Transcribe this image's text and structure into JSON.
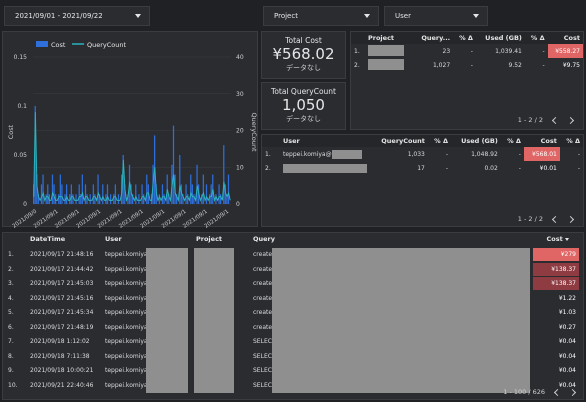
{
  "filters": {
    "date_range": "2021/09/01 - 2021/09/22",
    "project": "Project",
    "user": "User"
  },
  "kpi": {
    "total_cost_label": "Total Cost",
    "total_cost_value": "¥568.02",
    "total_cost_sub": "データなし",
    "total_query_label": "Total QueryCount",
    "total_query_value": "1,050",
    "total_query_sub": "データなし"
  },
  "chart_data": {
    "type": "bar",
    "legend": [
      "Cost",
      "QueryCount"
    ],
    "colors": {
      "cost": "#2f6fdb",
      "querycount": "#2bb3c0"
    },
    "ylabel_left": "Cost",
    "ylabel_right": "QueryCount",
    "ylim_left": [
      0,
      0.15
    ],
    "ylim_right": [
      0,
      40
    ],
    "yticks_left": [
      "0.15",
      "0.1",
      "0.05",
      "0"
    ],
    "yticks_right": [
      "40",
      "30",
      "20",
      "10",
      "0"
    ],
    "xticks": [
      "2021/09/0",
      "2021/09/1",
      "2021/09/1",
      "2021/09/1",
      "2021/09/1",
      "2021/09/1",
      "2021/09/1",
      "2021/09/1",
      "2021/09/1",
      "2021/09/1"
    ],
    "cost": [
      0.02,
      0.1,
      0.03,
      0.01,
      0.0,
      0.02,
      0.03,
      0.0,
      0.01,
      0.02,
      0.01,
      0.0,
      0.03,
      0.02,
      0.01,
      0.0,
      0.01,
      0.03,
      0.02,
      0.0,
      0.01,
      0.02,
      0.0,
      0.01,
      0.02,
      0.01,
      0.0,
      0.01,
      0.0,
      0.02,
      0.01,
      0.03,
      0.0,
      0.02,
      0.01,
      0.0,
      0.01,
      0.0,
      0.02,
      0.01,
      0.0,
      0.03,
      0.01,
      0.0,
      0.02,
      0.0,
      0.01,
      0.02,
      0.0,
      0.01,
      0.0,
      0.01,
      0.02,
      0.0,
      0.01,
      0.0,
      0.03,
      0.05,
      0.02,
      0.0,
      0.01,
      0.04,
      0.02,
      0.01,
      0.0,
      0.02,
      0.0,
      0.01,
      0.0,
      0.02,
      0.01,
      0.0,
      0.03,
      0.02,
      0.0,
      0.01,
      0.04,
      0.07,
      0.02,
      0.0,
      0.01,
      0.0,
      0.02,
      0.01,
      0.0,
      0.03,
      0.01,
      0.0,
      0.04,
      0.08,
      0.03,
      0.01,
      0.0,
      0.05,
      0.02,
      0.01,
      0.0,
      0.02,
      0.01,
      0.0,
      0.03,
      0.02,
      0.01,
      0.0,
      0.04,
      0.02,
      0.0,
      0.01,
      0.03,
      0.0,
      0.02,
      0.0,
      0.01,
      0.02,
      0.03,
      0.0,
      0.01,
      0.0,
      0.02,
      0.01,
      0.0,
      0.06,
      0.02,
      0.01,
      0.03,
      0.0
    ],
    "querycount": [
      2,
      25,
      5,
      2,
      1,
      2,
      3,
      1,
      2,
      2,
      1,
      1,
      3,
      2,
      1,
      1,
      2,
      2,
      2,
      1,
      1,
      2,
      1,
      1,
      2,
      2,
      1,
      1,
      1,
      2,
      2,
      3,
      1,
      2,
      2,
      1,
      1,
      1,
      2,
      2,
      1,
      3,
      2,
      1,
      2,
      1,
      1,
      2,
      1,
      1,
      1,
      2,
      2,
      1,
      1,
      1,
      3,
      12,
      4,
      1,
      2,
      6,
      3,
      2,
      1,
      2,
      1,
      1,
      1,
      2,
      2,
      1,
      3,
      3,
      1,
      1,
      6,
      10,
      3,
      1,
      2,
      1,
      2,
      2,
      1,
      4,
      2,
      1,
      5,
      8,
      3,
      2,
      1,
      5,
      3,
      2,
      1,
      2,
      2,
      1,
      3,
      2,
      2,
      1,
      5,
      3,
      1,
      2,
      3,
      1,
      2,
      1,
      2,
      2,
      4,
      1,
      2,
      1,
      2,
      2,
      1,
      6,
      3,
      2,
      3,
      1
    ]
  },
  "project_table": {
    "columns": [
      "Project",
      "Query...",
      "% Δ",
      "Used (GB)",
      "% Δ",
      "Cost"
    ],
    "rows": [
      {
        "idx": "1.",
        "query": "23",
        "pd1": "-",
        "used": "1,039.41",
        "pd2": "-",
        "cost": "¥558.27"
      },
      {
        "idx": "2.",
        "query": "1,027",
        "pd1": "-",
        "used": "9.52",
        "pd2": "-",
        "cost": "¥9.75"
      }
    ],
    "pager": "1 - 2 / 2"
  },
  "user_table": {
    "columns": [
      "User",
      "QueryCount",
      "% Δ",
      "Used (GB)",
      "% Δ",
      "Cost",
      "% Δ"
    ],
    "rows": [
      {
        "idx": "1.",
        "user": "teppei.komiya@",
        "query": "1,033",
        "pd1": "-",
        "used": "1,048.92",
        "pd2": "-",
        "cost": "¥568.01",
        "pd3": "-"
      },
      {
        "idx": "2.",
        "user": "",
        "query": "17",
        "pd1": "-",
        "used": "0.02",
        "pd2": "-",
        "cost": "¥0.01",
        "pd3": "-"
      }
    ],
    "pager": "1 - 2 / 2"
  },
  "detail_table": {
    "columns": [
      "DateTime",
      "User",
      "Project",
      "Query",
      "Cost"
    ],
    "rows": [
      {
        "idx": "1.",
        "dt": "2021/09/17 21:48:16",
        "user": "teppei.komiyat",
        "query": "create",
        "cost": "¥279"
      },
      {
        "idx": "2.",
        "dt": "2021/09/17 21:44:42",
        "user": "teppei.komiyat",
        "query": "create",
        "cost": "¥138.37"
      },
      {
        "idx": "3.",
        "dt": "2021/09/17 21:45:03",
        "user": "teppei.komiyat",
        "query": "create",
        "cost": "¥138.37"
      },
      {
        "idx": "4.",
        "dt": "2021/09/17 21:45:16",
        "user": "teppei.komiyat",
        "query": "create",
        "cost": "¥1.22"
      },
      {
        "idx": "5.",
        "dt": "2021/09/17 21:45:34",
        "user": "teppei.komiyat",
        "query": "create",
        "cost": "¥1.03"
      },
      {
        "idx": "6.",
        "dt": "2021/09/17 21:48:19",
        "user": "teppei.komiyat",
        "query": "create",
        "cost": "¥0.27"
      },
      {
        "idx": "7.",
        "dt": "2021/09/18 1:12:02",
        "user": "teppei.komiyat",
        "query": "SELECT",
        "cost": "¥0.04"
      },
      {
        "idx": "8.",
        "dt": "2021/09/18 7:11:38",
        "user": "teppei.komiyat",
        "query": "SELECT",
        "cost": "¥0.04"
      },
      {
        "idx": "9.",
        "dt": "2021/09/18 10:00:21",
        "user": "teppei.komiyat",
        "query": "SELECT",
        "cost": "¥0.04"
      },
      {
        "idx": "10.",
        "dt": "2021/09/21 22:40:46",
        "user": "teppei.komiyat",
        "query": "SELECT",
        "cost": "¥0.04"
      }
    ],
    "pager": "1 - 100 / 626"
  },
  "colors": {
    "cost_high": "#e06666",
    "cost_mid": "#8e3b42",
    "cost_low": "#5a3338"
  }
}
